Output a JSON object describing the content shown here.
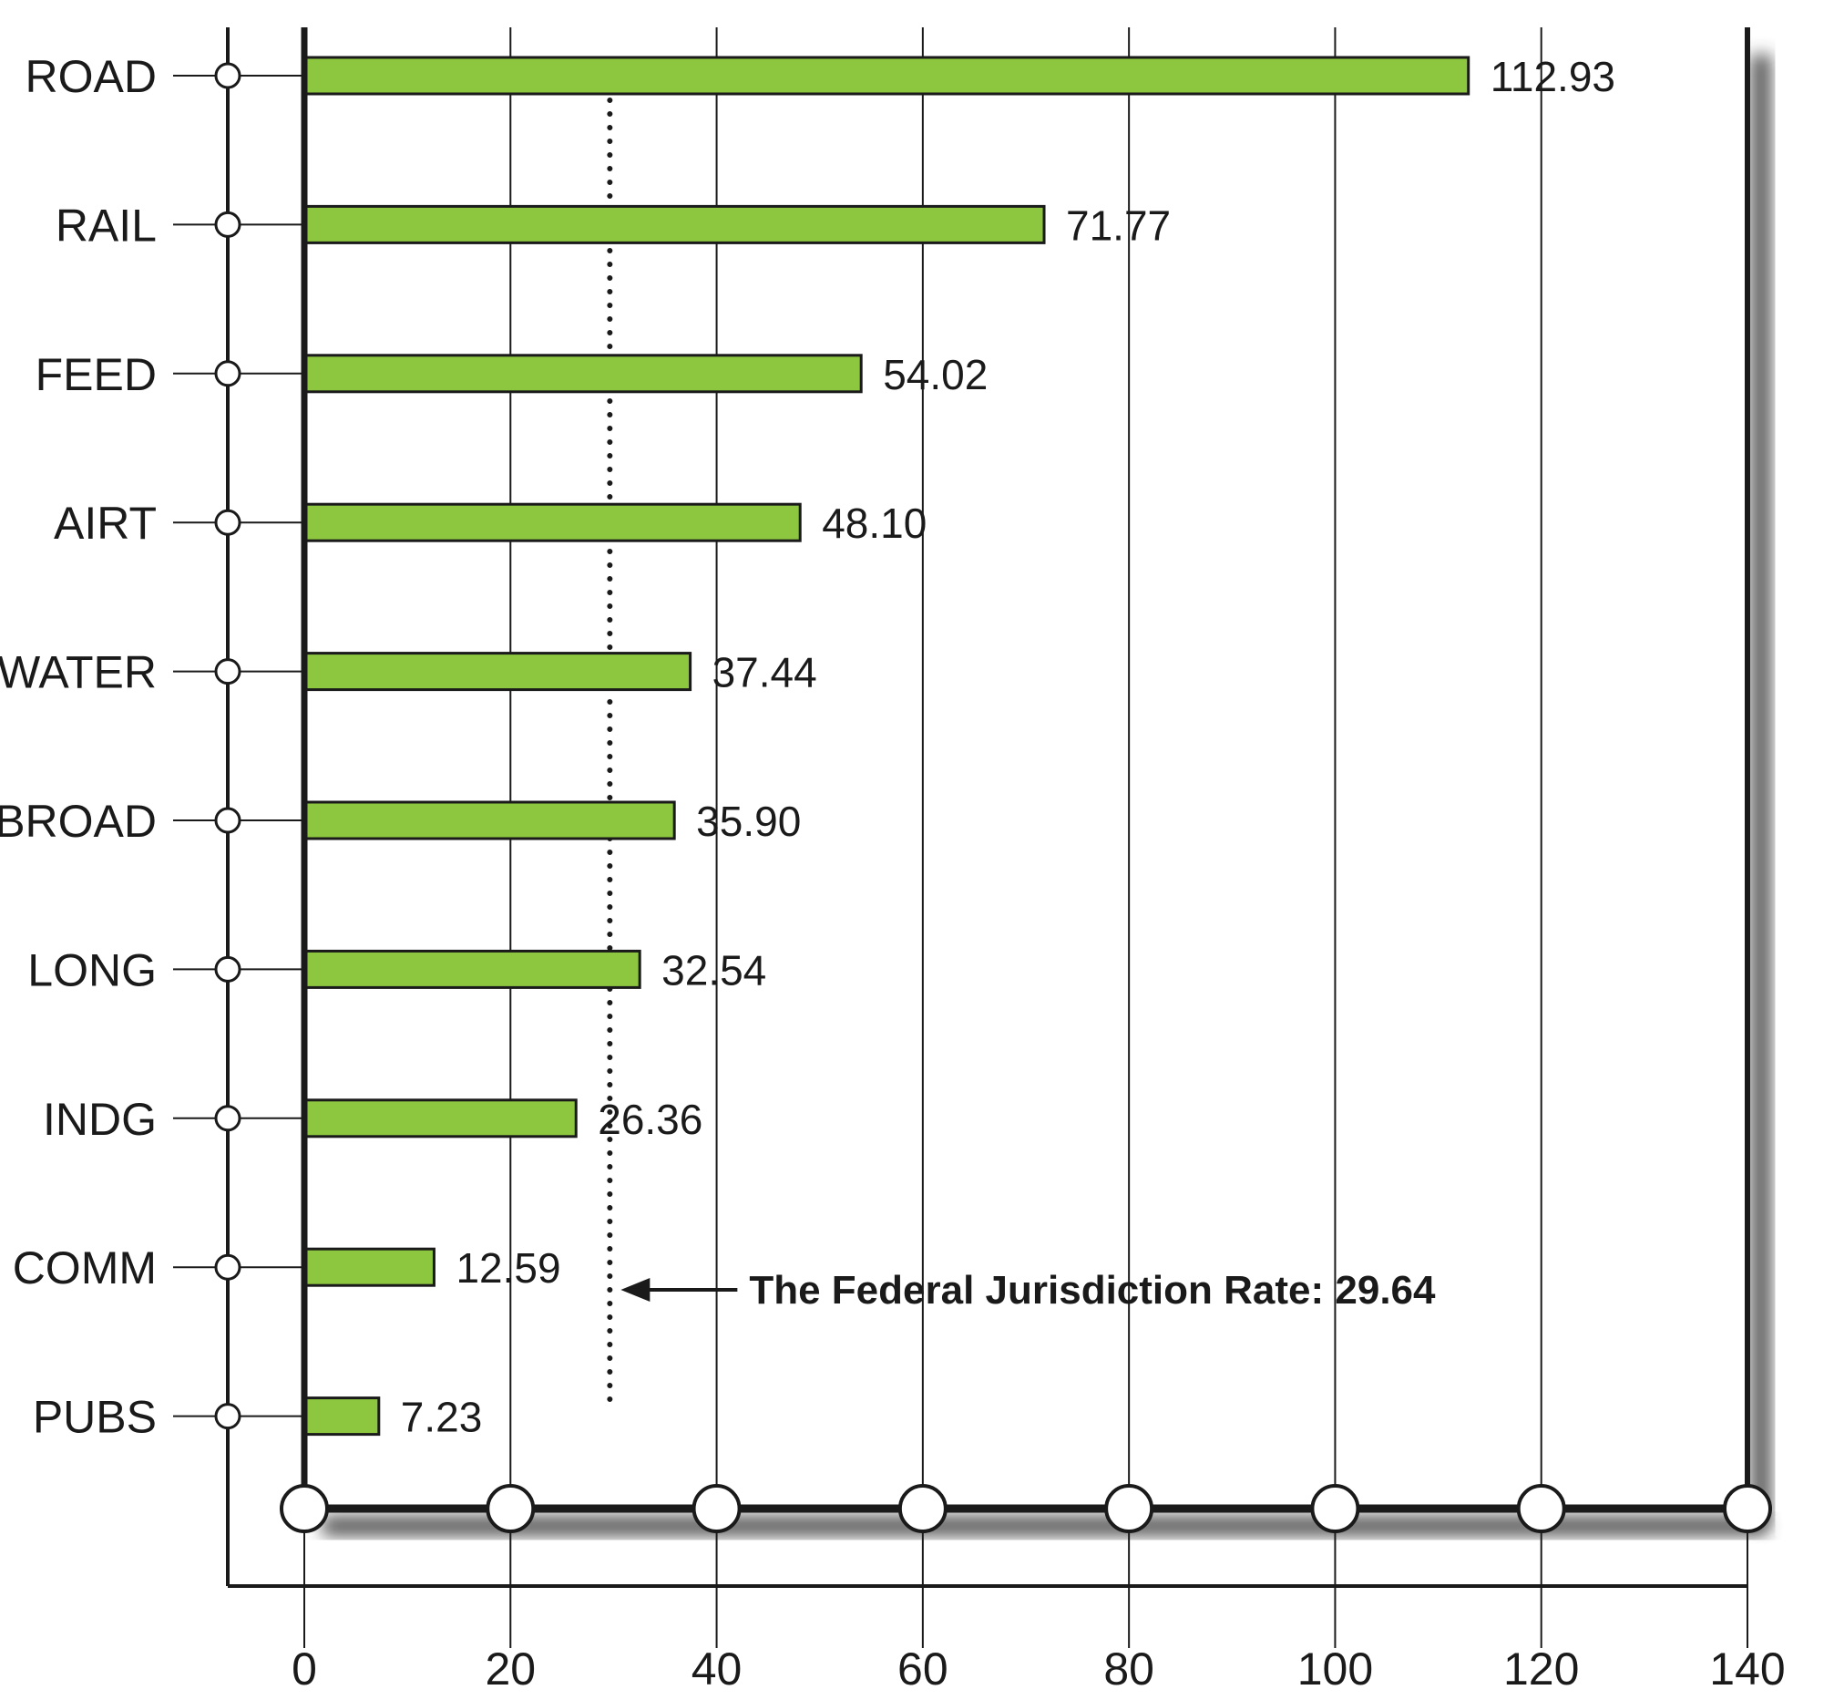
{
  "chart_data": {
    "type": "bar",
    "orientation": "horizontal",
    "title": "",
    "xlabel": "",
    "ylabel": "",
    "categories": [
      "ROAD",
      "RAIL",
      "FEED",
      "AIRT",
      "WATER",
      "BROAD",
      "LONG",
      "INDG",
      "COMM",
      "PUBS"
    ],
    "values": [
      112.93,
      71.77,
      54.02,
      48.1,
      37.44,
      35.9,
      32.54,
      26.36,
      12.59,
      7.23
    ],
    "value_labels": [
      "112.93",
      "71.77",
      "54.02",
      "48.10",
      "37.44",
      "35.90",
      "32.54",
      "26.36",
      "12.59",
      "7.23"
    ],
    "xlim": [
      0,
      140
    ],
    "x_ticks": [
      0,
      20,
      40,
      60,
      80,
      100,
      120,
      140
    ],
    "x_tick_labels": [
      "0",
      "20",
      "40",
      "60",
      "80",
      "100",
      "120",
      "140"
    ],
    "grid": "vertical",
    "reference_line": {
      "value": 29.64,
      "style": "dotted",
      "label": "The Federal Jurisdiction Rate: 29.64"
    },
    "bar_color": "#8dc63f",
    "bar_edge_color": "#1a1a1a"
  }
}
